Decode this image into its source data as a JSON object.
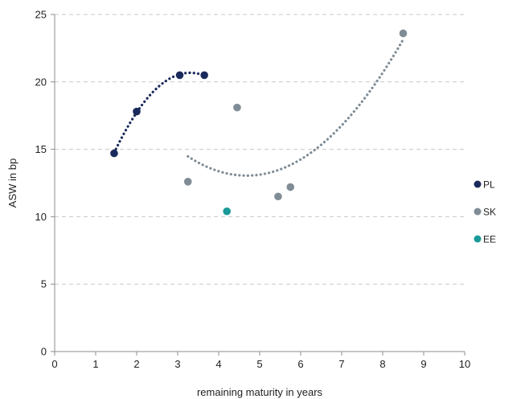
{
  "chart_data": {
    "type": "scatter",
    "title": "",
    "xlabel": "remaining maturity in years",
    "ylabel": "ASW in bp",
    "xlim": [
      0,
      10
    ],
    "ylim": [
      0,
      25
    ],
    "xticks": [
      0,
      1,
      2,
      3,
      4,
      5,
      6,
      7,
      8,
      9,
      10
    ],
    "yticks": [
      0,
      5,
      10,
      15,
      20,
      25
    ],
    "grid": "horizontal-dashed",
    "legend_position": "right",
    "series": [
      {
        "name": "PL",
        "color": "#1b2a5c",
        "points": [
          {
            "x": 1.45,
            "y": 14.7
          },
          {
            "x": 2.0,
            "y": 17.8
          },
          {
            "x": 3.05,
            "y": 20.5
          },
          {
            "x": 3.65,
            "y": 20.5
          }
        ],
        "trendline": "polynomial"
      },
      {
        "name": "SK",
        "color": "#7f8c95",
        "points": [
          {
            "x": 3.25,
            "y": 12.6
          },
          {
            "x": 4.45,
            "y": 18.1
          },
          {
            "x": 5.45,
            "y": 11.5
          },
          {
            "x": 5.75,
            "y": 12.2
          },
          {
            "x": 8.5,
            "y": 23.6
          }
        ],
        "trendline": "polynomial"
      },
      {
        "name": "EE",
        "color": "#1a9a9a",
        "points": [
          {
            "x": 4.2,
            "y": 10.4
          }
        ]
      }
    ]
  }
}
